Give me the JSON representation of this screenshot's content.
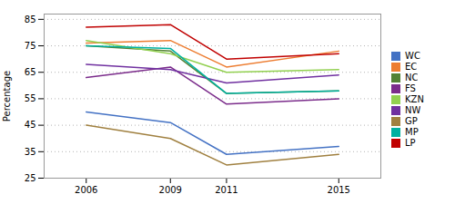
{
  "chart_data": {
    "type": "line",
    "x": [
      2006,
      2009,
      2011,
      2015
    ],
    "series": [
      {
        "name": "WC",
        "color": "#4472C4",
        "values": [
          50,
          46,
          34,
          37
        ]
      },
      {
        "name": "EC",
        "color": "#ED7D31",
        "values": [
          76,
          77,
          67,
          73
        ]
      },
      {
        "name": "NC",
        "color": "#548235",
        "values": [
          75,
          73,
          57,
          58
        ]
      },
      {
        "name": "FS",
        "color": "#7B2C8B",
        "values": [
          63,
          67,
          53,
          55
        ]
      },
      {
        "name": "KZN",
        "color": "#92D050",
        "values": [
          77,
          72,
          65,
          66
        ]
      },
      {
        "name": "NW",
        "color": "#7030A0",
        "values": [
          68,
          66,
          61,
          64
        ]
      },
      {
        "name": "GP",
        "color": "#A08040",
        "values": [
          45,
          40,
          30,
          34
        ]
      },
      {
        "name": "MP",
        "color": "#00B0A0",
        "values": [
          75,
          74,
          57,
          58
        ]
      },
      {
        "name": "LP",
        "color": "#C00000",
        "values": [
          82,
          83,
          70,
          72
        ]
      }
    ],
    "ylabel": "Percentage",
    "xlim": [
      2004.5,
      2016.5
    ],
    "xticks": [
      2006,
      2009,
      2011,
      2015
    ],
    "ylim": [
      25,
      87
    ],
    "yticks": [
      25,
      35,
      45,
      55,
      65,
      75,
      85
    ],
    "grid": true,
    "legend": "right"
  }
}
